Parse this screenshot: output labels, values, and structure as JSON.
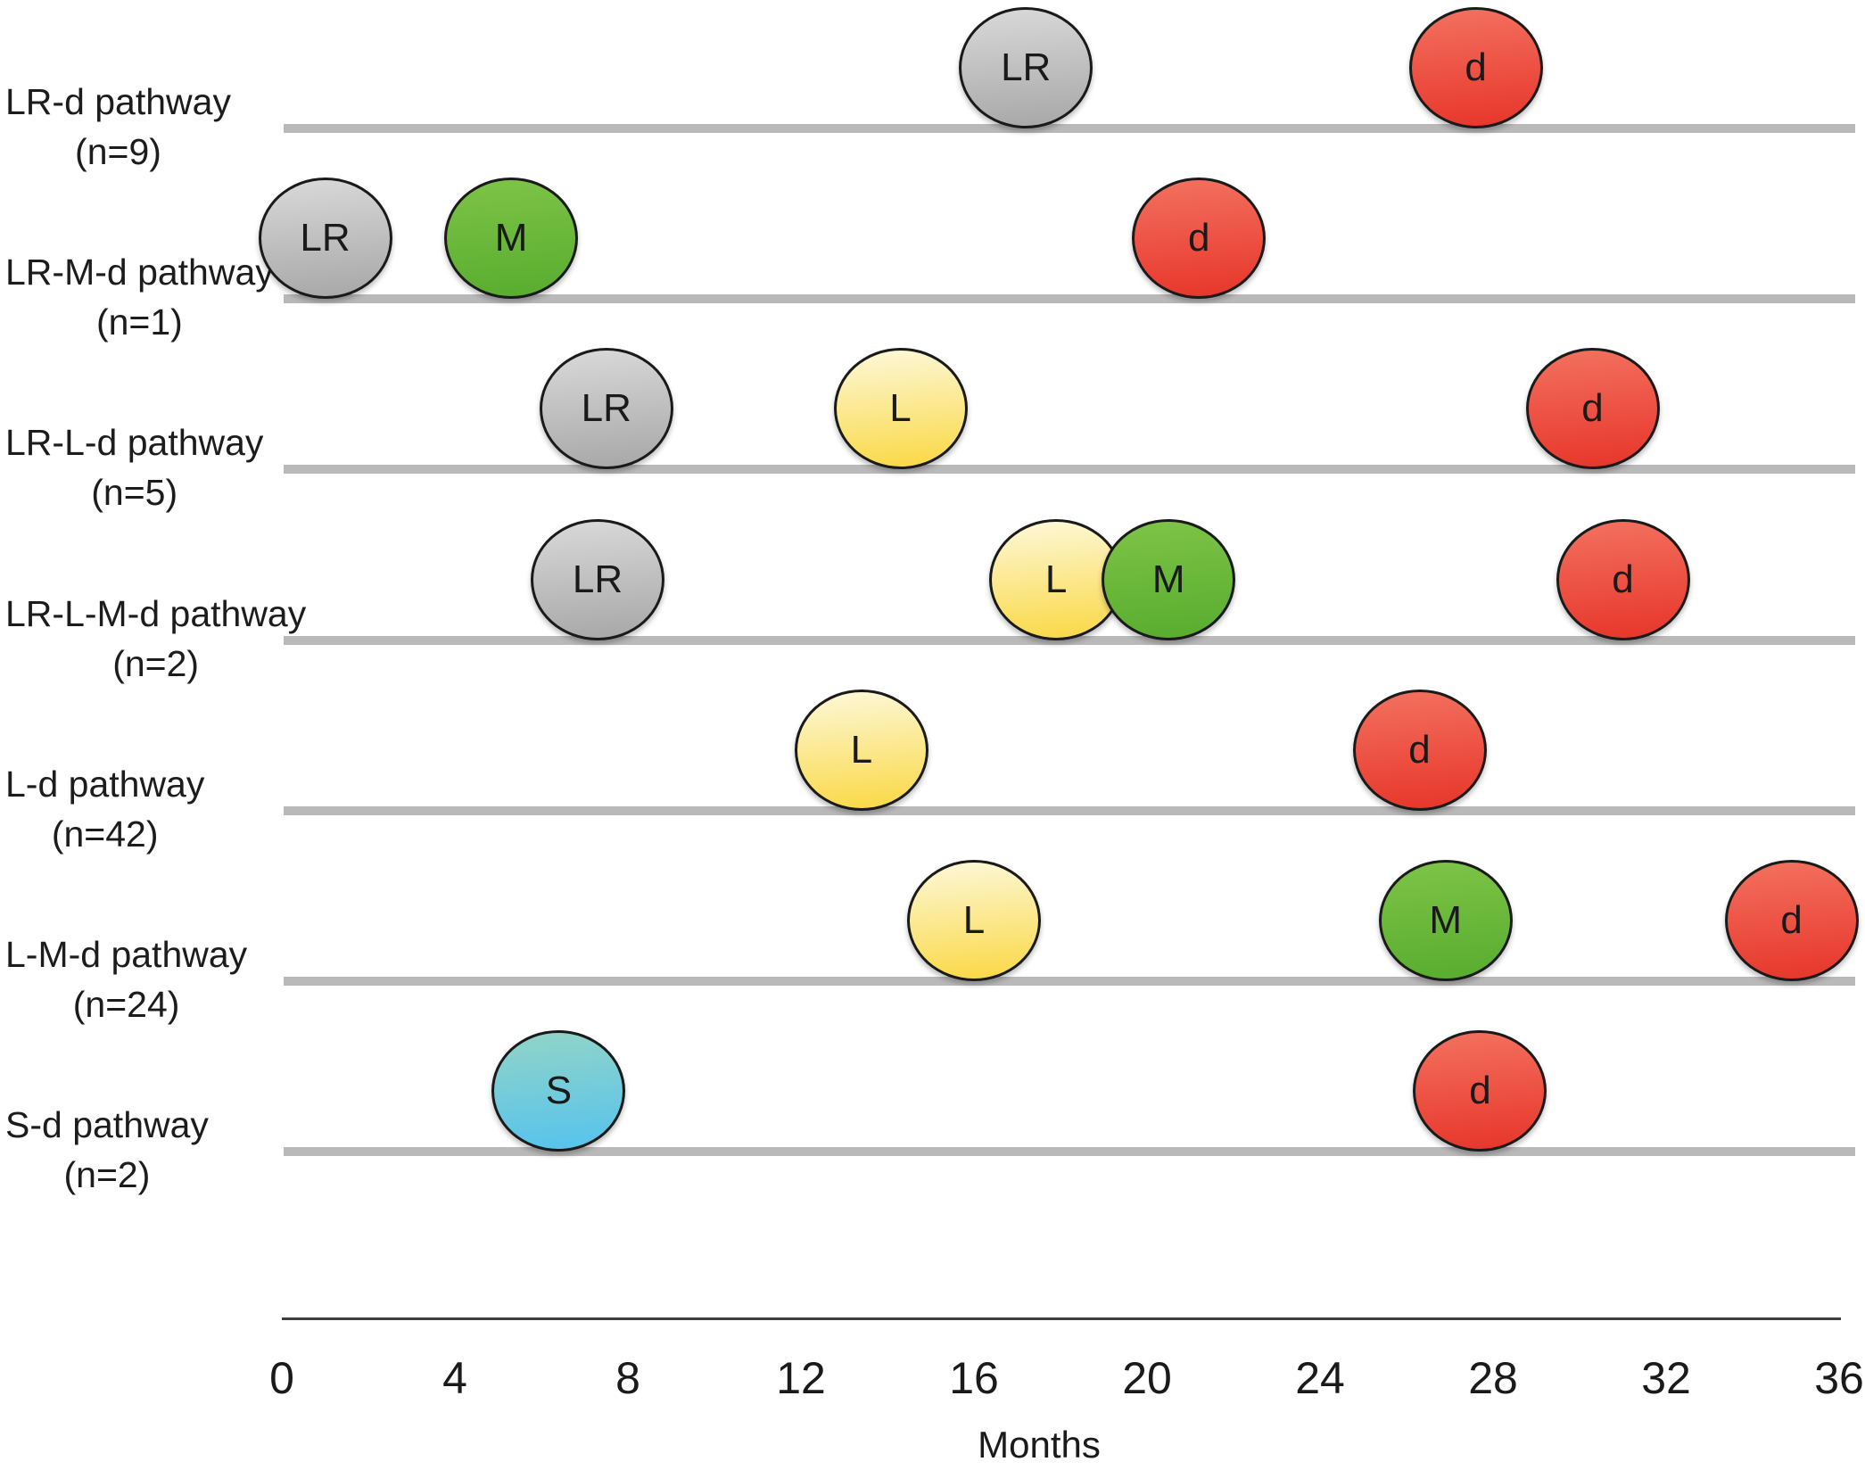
{
  "figure_title": "",
  "axis": {
    "xlabel": "Months",
    "tick_labels": [
      "0",
      "4",
      "8",
      "12",
      "16",
      "20",
      "24",
      "28",
      "32",
      "36"
    ]
  },
  "palette": {
    "LR": {
      "top": "#d9d9d9",
      "bottom": "#a7a7a7"
    },
    "M": {
      "top": "#7ec448",
      "bottom": "#58ac2e"
    },
    "L": {
      "top": "#fdf8d9",
      "bottom": "#fad843"
    },
    "d": {
      "top": "#f3715f",
      "bottom": "#e7352a"
    },
    "S": {
      "top": "#92d4c7",
      "bottom": "#55c3ee"
    }
  },
  "chart_data": {
    "type": "timeline",
    "xlabel": "Months",
    "x_ticks": [
      0,
      4,
      8,
      12,
      16,
      20,
      24,
      28,
      32,
      36
    ],
    "xlim": [
      0,
      36
    ],
    "grid": false,
    "legend": false,
    "marker_meanings": {
      "LR": "gray marker",
      "M": "green marker",
      "L": "yellow marker",
      "d": "red marker",
      "S": "blue marker"
    },
    "rows": [
      {
        "pathway": "LR-d pathway",
        "n_label": "(n=9)",
        "n": 9,
        "events": [
          {
            "label": "LR",
            "month": 17.2
          },
          {
            "label": "d",
            "month": 27.6
          }
        ]
      },
      {
        "pathway": "LR-M-d pathway",
        "n_label": "(n=1)",
        "n": 1,
        "events": [
          {
            "label": "LR",
            "month": 1.0
          },
          {
            "label": "M",
            "month": 5.3
          },
          {
            "label": "d",
            "month": 21.2
          }
        ]
      },
      {
        "pathway": "LR-L-d pathway",
        "n_label": "(n=5)",
        "n": 5,
        "events": [
          {
            "label": "LR",
            "month": 7.5
          },
          {
            "label": "L",
            "month": 14.3
          },
          {
            "label": "d",
            "month": 30.3
          }
        ]
      },
      {
        "pathway": "LR-L-M-d pathway",
        "n_label": "(n=2)",
        "n": 2,
        "events": [
          {
            "label": "LR",
            "month": 7.3
          },
          {
            "label": "L",
            "month": 17.9
          },
          {
            "label": "M",
            "month": 20.5
          },
          {
            "label": "d",
            "month": 31.0
          }
        ]
      },
      {
        "pathway": "L-d pathway",
        "n_label": "(n=42)",
        "n": 42,
        "events": [
          {
            "label": "L",
            "month": 13.4
          },
          {
            "label": "d",
            "month": 26.3
          }
        ]
      },
      {
        "pathway": "L-M-d pathway",
        "n_label": "(n=24)",
        "n": 24,
        "events": [
          {
            "label": "L",
            "month": 16.0
          },
          {
            "label": "M",
            "month": 26.9
          },
          {
            "label": "d",
            "month": 34.9
          }
        ]
      },
      {
        "pathway": "S-d pathway",
        "n_label": "(n=2)",
        "n": 2,
        "events": [
          {
            "label": "S",
            "month": 6.4
          },
          {
            "label": "d",
            "month": 27.7
          }
        ]
      }
    ]
  }
}
